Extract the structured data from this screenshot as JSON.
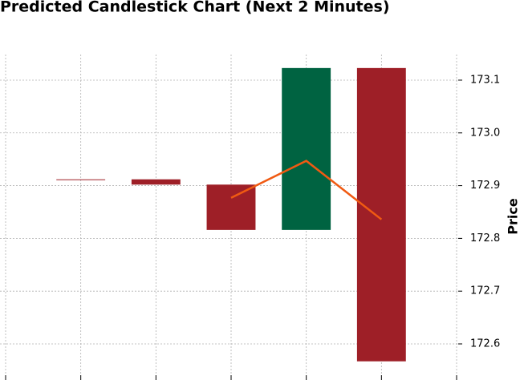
{
  "chart_data": {
    "type": "candlestick",
    "title": "Predicted Candlestick Chart (Next 2 Minutes)",
    "y_label": "Price",
    "x": [
      1,
      2,
      3,
      4,
      5
    ],
    "open": [
      172.912,
      172.912,
      172.902,
      172.816,
      173.123
    ],
    "close": [
      172.912,
      172.902,
      172.816,
      173.123,
      172.567
    ],
    "up_color": "#006341",
    "down_color": "#9e1f27",
    "line": {
      "color": "#f05a12",
      "values": [
        null,
        null,
        172.877,
        172.947,
        172.836
      ]
    },
    "xlim": [
      0,
      6
    ],
    "xticks": [
      0,
      1,
      2,
      3,
      4,
      5,
      6
    ],
    "ylim": [
      172.5407,
      173.1486
    ],
    "yticks": [
      172.6,
      172.7,
      172.8,
      172.9,
      {
        "value": 173,
        "label": "173.0"
      },
      173.1
    ],
    "grid": true
  }
}
